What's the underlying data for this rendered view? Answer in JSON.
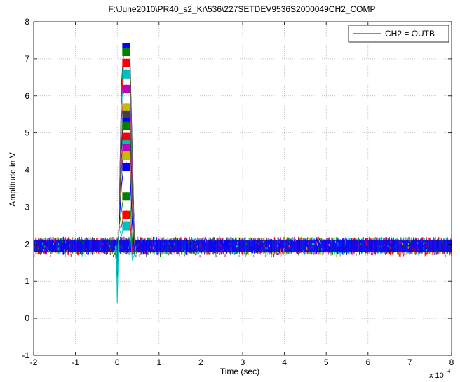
{
  "chart_data": {
    "type": "line",
    "title": "F:\\June2010\\PR40_s2_Kr\\536\\227SETDEV9536S2000049CH2_COMP",
    "xlabel": "Time (sec)",
    "ylabel": "Amplitude in V",
    "x_multiplier_label": "x 10",
    "x_multiplier_exponent": "-4",
    "xlim": [
      -2,
      8
    ],
    "ylim": [
      -1,
      8
    ],
    "x_ticks": [
      "-2",
      "-1",
      "0",
      "1",
      "2",
      "3",
      "4",
      "5",
      "6",
      "7",
      "8"
    ],
    "y_ticks": [
      "-1",
      "0",
      "1",
      "2",
      "3",
      "4",
      "5",
      "6",
      "7",
      "8"
    ],
    "grid": true,
    "legend_position": "top-right",
    "series": [
      {
        "name": "CH2 = OUTB",
        "color": "#0000ff"
      }
    ],
    "baseline": {
      "level_v": 1.95,
      "band_min_v": 1.7,
      "band_max_v": 2.2
    },
    "pulse_start_x": 0.0,
    "pulse_end_x": 0.45,
    "pulse_min_v": 0.4,
    "pulse_peaks_v": [
      7.42,
      7.3,
      7.0,
      6.7,
      6.3,
      5.8,
      5.6,
      5.4,
      5.3,
      5.0,
      4.8,
      4.7,
      4.5,
      4.2,
      4.2,
      3.4,
      2.9,
      2.6
    ],
    "trace_colors": [
      "#0000ff",
      "#008000",
      "#ff0000",
      "#00bfbf",
      "#bf00bf",
      "#bfbf00",
      "#404040"
    ]
  }
}
